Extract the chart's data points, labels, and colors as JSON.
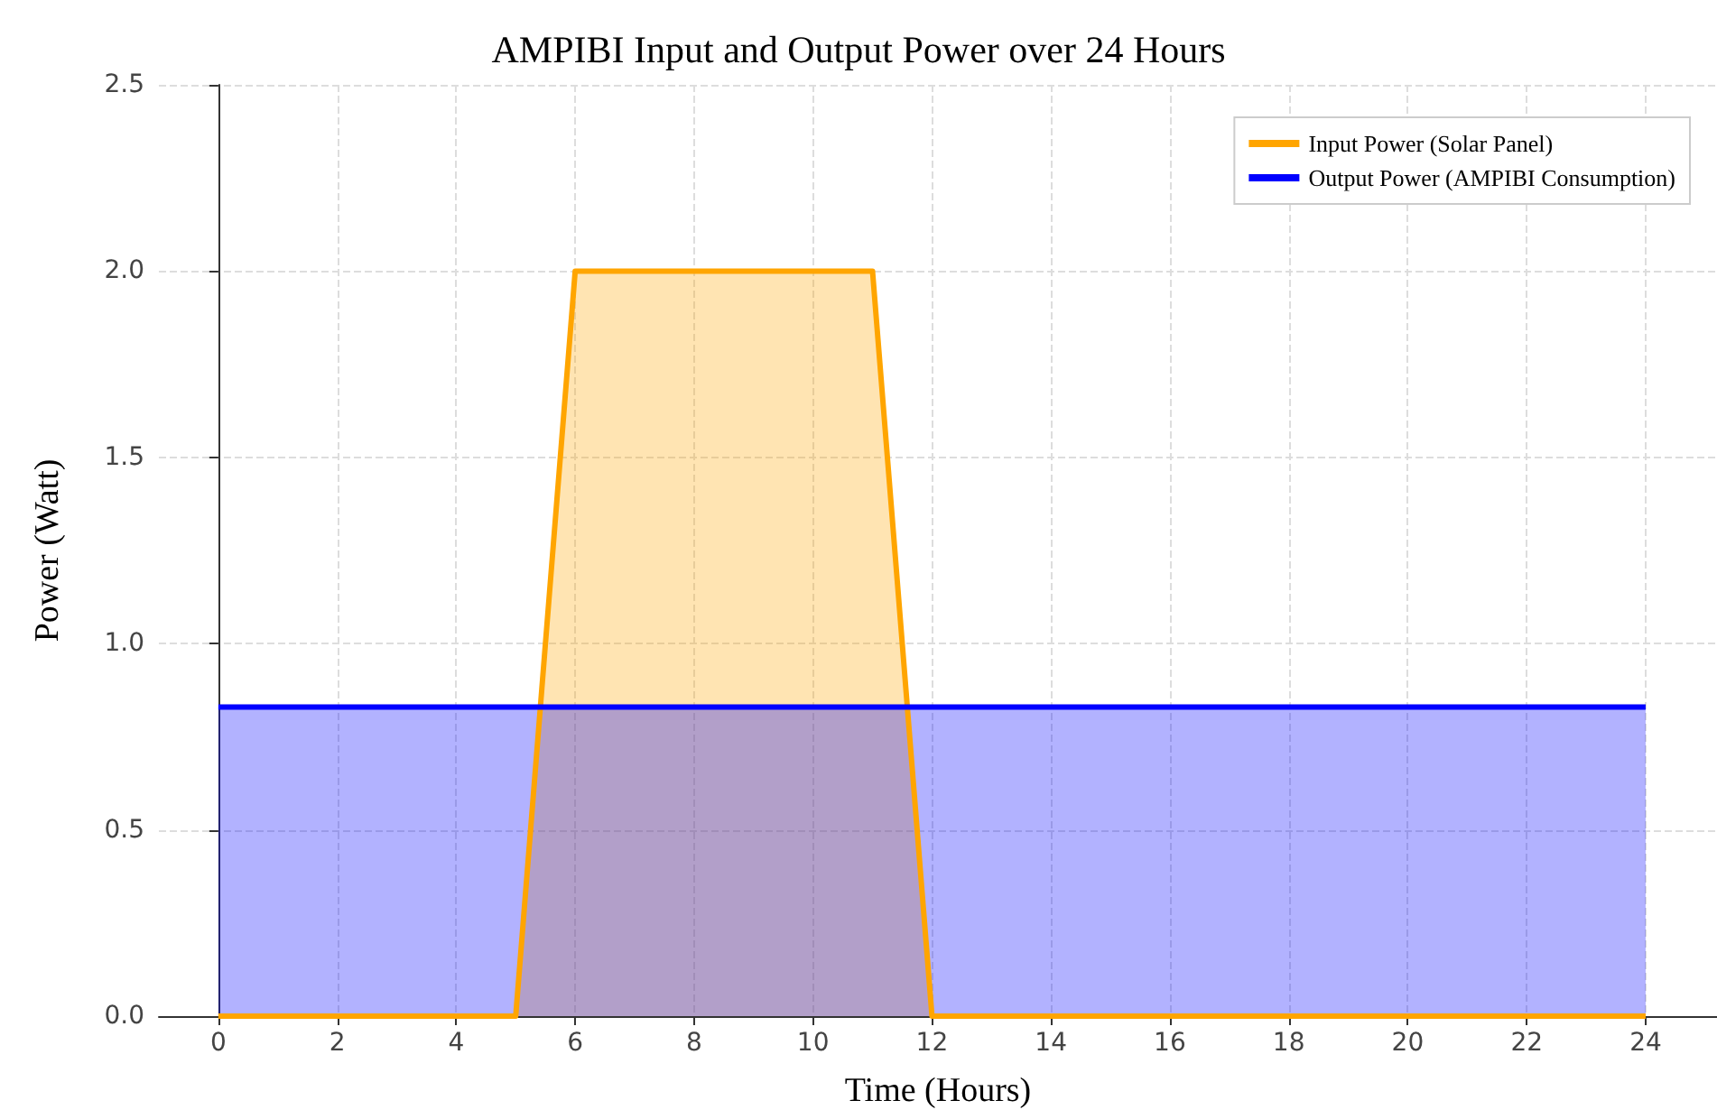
{
  "chart_data": {
    "type": "area",
    "title": "AMPIBI Input and Output Power over 24 Hours",
    "xlabel": "Time (Hours)",
    "ylabel": "Power (Watt)",
    "series": [
      {
        "name": "Input Power (Solar Panel)",
        "color": "#ffa500",
        "x": [
          0,
          5,
          6,
          11,
          12,
          24
        ],
        "values": [
          0,
          0,
          2,
          2,
          0,
          0
        ]
      },
      {
        "name": "Output Power (AMPIBI Consumption)",
        "color": "#0000ff",
        "x": [
          0,
          24
        ],
        "values": [
          0.83,
          0.83
        ]
      }
    ],
    "xlim": [
      -1,
      25.2
    ],
    "xticks": [
      0,
      2,
      4,
      6,
      8,
      10,
      12,
      14,
      16,
      18,
      20,
      22,
      24
    ],
    "ylim": [
      0,
      2.5
    ],
    "yticks": [
      {
        "value": 0,
        "label": "0.0"
      },
      0.5,
      {
        "value": 1,
        "label": "1.0"
      },
      1.5,
      {
        "value": 2,
        "label": "2.0"
      },
      2.5
    ],
    "grid": true,
    "legend": "top right",
    "marker": "none",
    "line_style": "solid"
  }
}
